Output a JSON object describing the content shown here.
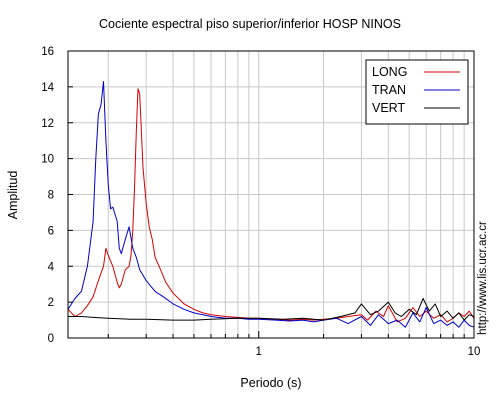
{
  "chart_data": {
    "type": "line",
    "title": "Cociente espectral piso superior/inferior  HOSP NINOS",
    "xlabel": "Periodo (s)",
    "ylabel": "Amplitud",
    "xscale": "log",
    "xlim": [
      0.13,
      10
    ],
    "ylim": [
      0,
      16
    ],
    "xticks": [
      1,
      10
    ],
    "yticks": [
      0,
      2,
      4,
      6,
      8,
      10,
      12,
      14,
      16
    ],
    "grid": true,
    "legend_position": "top-right",
    "series": [
      {
        "name": "LONG",
        "color": "#d40000",
        "x": [
          0.13,
          0.14,
          0.15,
          0.16,
          0.17,
          0.18,
          0.19,
          0.195,
          0.2,
          0.21,
          0.22,
          0.225,
          0.23,
          0.24,
          0.25,
          0.255,
          0.26,
          0.265,
          0.27,
          0.275,
          0.28,
          0.285,
          0.29,
          0.3,
          0.31,
          0.32,
          0.33,
          0.35,
          0.37,
          0.4,
          0.45,
          0.5,
          0.55,
          0.6,
          0.7,
          0.8,
          0.9,
          1.0,
          1.2,
          1.4,
          1.6,
          1.8,
          2.0,
          2.3,
          2.6,
          3.0,
          3.2,
          3.5,
          3.8,
          4.0,
          4.4,
          4.8,
          5.2,
          5.6,
          6.0,
          6.5,
          7.0,
          7.5,
          8.0,
          8.5,
          9.0,
          9.5,
          10.0
        ],
        "y": [
          1.6,
          1.2,
          1.4,
          1.8,
          2.3,
          3.2,
          4.0,
          5.0,
          4.6,
          4.0,
          3.1,
          2.8,
          3.0,
          3.8,
          4.0,
          4.6,
          6.0,
          8.5,
          11.5,
          13.9,
          13.6,
          11.5,
          9.5,
          7.5,
          6.2,
          5.5,
          4.5,
          3.8,
          3.1,
          2.5,
          1.9,
          1.6,
          1.4,
          1.3,
          1.2,
          1.15,
          1.1,
          1.1,
          1.05,
          1.0,
          1.05,
          1.0,
          1.05,
          1.1,
          1.2,
          1.3,
          1.0,
          1.5,
          1.2,
          1.8,
          0.9,
          1.1,
          1.7,
          1.2,
          1.5,
          1.1,
          1.3,
          0.9,
          1.1,
          1.4,
          1.2,
          1.5,
          1.1
        ]
      },
      {
        "name": "TRAN",
        "color": "#0000cc",
        "x": [
          0.13,
          0.14,
          0.15,
          0.16,
          0.17,
          0.175,
          0.18,
          0.185,
          0.19,
          0.195,
          0.2,
          0.205,
          0.21,
          0.22,
          0.225,
          0.23,
          0.24,
          0.25,
          0.26,
          0.27,
          0.28,
          0.3,
          0.33,
          0.36,
          0.4,
          0.45,
          0.5,
          0.55,
          0.6,
          0.7,
          0.8,
          0.9,
          1.0,
          1.2,
          1.4,
          1.6,
          1.8,
          2.0,
          2.3,
          2.6,
          3.0,
          3.3,
          3.6,
          4.0,
          4.4,
          4.8,
          5.2,
          5.6,
          6.0,
          6.5,
          7.0,
          7.5,
          8.0,
          8.5,
          9.0,
          9.5,
          10.0
        ],
        "y": [
          1.6,
          2.2,
          2.6,
          4.0,
          6.5,
          10.0,
          12.5,
          13.0,
          14.3,
          11.0,
          8.5,
          7.2,
          7.3,
          6.5,
          5.0,
          4.7,
          5.5,
          6.2,
          5.0,
          4.5,
          3.8,
          3.2,
          2.6,
          2.3,
          1.9,
          1.6,
          1.4,
          1.3,
          1.2,
          1.1,
          1.1,
          1.05,
          1.05,
          1.0,
          0.95,
          1.0,
          0.9,
          1.0,
          1.1,
          0.8,
          1.2,
          0.7,
          1.3,
          0.8,
          1.0,
          0.6,
          1.4,
          0.9,
          1.7,
          0.8,
          1.0,
          0.7,
          0.9,
          0.6,
          1.0,
          0.7,
          0.6
        ]
      },
      {
        "name": "VERT",
        "color": "#000000",
        "x": [
          0.13,
          0.15,
          0.17,
          0.2,
          0.25,
          0.3,
          0.4,
          0.5,
          0.6,
          0.8,
          1.0,
          1.3,
          1.6,
          2.0,
          2.4,
          2.8,
          3.0,
          3.3,
          3.6,
          4.0,
          4.3,
          4.6,
          5.0,
          5.4,
          5.8,
          6.2,
          6.6,
          7.0,
          7.5,
          8.0,
          8.5,
          9.0,
          9.5,
          10.0
        ],
        "y": [
          1.2,
          1.2,
          1.15,
          1.1,
          1.05,
          1.05,
          1.0,
          1.0,
          1.05,
          1.1,
          1.1,
          1.05,
          1.1,
          1.0,
          1.2,
          1.4,
          1.9,
          1.3,
          1.5,
          2.0,
          1.4,
          1.2,
          1.6,
          1.3,
          2.2,
          1.5,
          1.9,
          1.2,
          1.5,
          1.1,
          1.4,
          1.0,
          1.3,
          1.2
        ]
      }
    ]
  },
  "credit": "http://www.lis.ucr.ac.cr"
}
